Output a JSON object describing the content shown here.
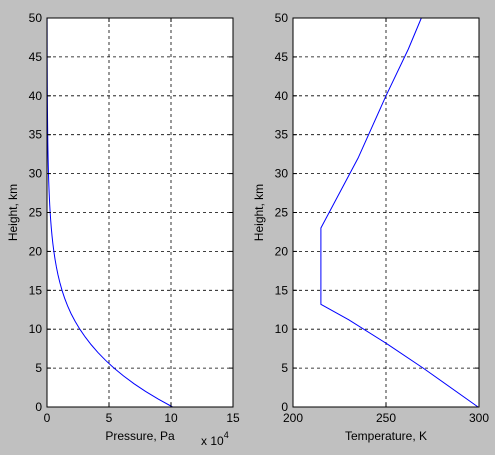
{
  "figure": {
    "background": "#c0c0c0",
    "axes_background": "#ffffff",
    "line_color": "#0000ff"
  },
  "chart_data": [
    {
      "type": "line",
      "xlabel": "Pressure, Pa",
      "ylabel": "Height, km",
      "xlim": [
        0,
        150000
      ],
      "ylim": [
        0,
        50
      ],
      "xticks": [
        0,
        50000,
        100000,
        150000
      ],
      "xtick_labels": [
        "0",
        "5",
        "10",
        "15"
      ],
      "yticks": [
        0,
        5,
        10,
        15,
        20,
        25,
        30,
        35,
        40,
        45,
        50
      ],
      "ytick_labels": [
        "0",
        "5",
        "10",
        "15",
        "20",
        "25",
        "30",
        "35",
        "40",
        "45",
        "50"
      ],
      "x_exponent": {
        "base": "x 10",
        "power": "4"
      },
      "grid": true,
      "series": [
        {
          "color": "#0000ff",
          "x": [
            101325,
            89876,
            79501,
            70121,
            61660,
            54048,
            47217,
            41105,
            35651,
            30800,
            26499,
            22699,
            19399,
            16579,
            14170,
            12111,
            10352,
            8849,
            7565,
            6467,
            5529,
            4729,
            4047,
            3467,
            2972,
            2549,
            2188,
            1880,
            1616,
            1390,
            1197,
            1032,
            889,
            767,
            663,
            574,
            498,
            432,
            375,
            327,
            287,
            251,
            220,
            193,
            169,
            149,
            131,
            116,
            102,
            90,
            80
          ],
          "y": [
            0,
            1,
            2,
            3,
            4,
            5,
            6,
            7,
            8,
            9,
            10,
            11,
            12,
            13,
            14,
            15,
            16,
            17,
            18,
            19,
            20,
            21,
            22,
            23,
            24,
            25,
            26,
            27,
            28,
            29,
            30,
            31,
            32,
            33,
            34,
            35,
            36,
            37,
            38,
            39,
            40,
            41,
            42,
            43,
            44,
            45,
            46,
            47,
            48,
            49,
            50
          ]
        }
      ]
    },
    {
      "type": "line",
      "xlabel": "Temperature, K",
      "ylabel": "Height, km",
      "xlim": [
        200,
        300
      ],
      "ylim": [
        0,
        50
      ],
      "xticks": [
        200,
        250,
        300
      ],
      "xtick_labels": [
        "200",
        "250",
        "300"
      ],
      "yticks": [
        0,
        5,
        10,
        15,
        20,
        25,
        30,
        35,
        40,
        45,
        50
      ],
      "ytick_labels": [
        "0",
        "5",
        "10",
        "15",
        "20",
        "25",
        "30",
        "35",
        "40",
        "45",
        "50"
      ],
      "grid": true,
      "series": [
        {
          "color": "#0000ff",
          "x": [
            299.5,
            270,
            250,
            230,
            215,
            215,
            215,
            235,
            250,
            262,
            269
          ],
          "y": [
            0,
            5,
            8.2,
            11.2,
            13.2,
            18,
            23,
            32,
            40,
            46,
            50
          ]
        }
      ]
    }
  ]
}
